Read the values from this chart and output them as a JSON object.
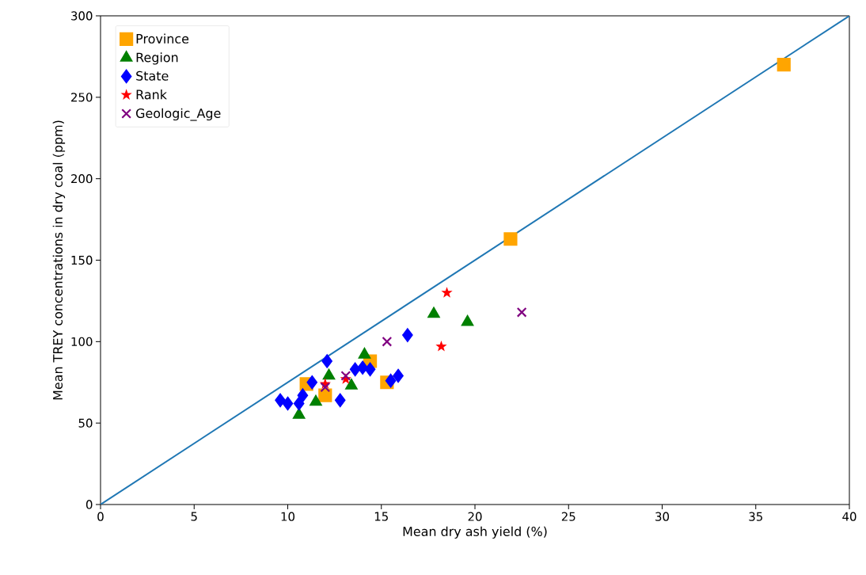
{
  "chart_data": {
    "type": "scatter",
    "xlabel": "Mean dry ash yield (%)",
    "ylabel": "Mean TREY concentrations in dry coal (ppm)",
    "xlim": [
      0,
      40
    ],
    "xticks": [
      0,
      5,
      10,
      15,
      20,
      25,
      30,
      35,
      40
    ],
    "ylim": [
      0,
      300
    ],
    "yticks": [
      0,
      50,
      100,
      150,
      200,
      250,
      300
    ],
    "grid": false,
    "legend": "top left",
    "series": [
      {
        "name": "Province",
        "color": "#ffa500",
        "marker": "square",
        "x": [
          11.0,
          12.0,
          14.4,
          15.3,
          21.9,
          36.5
        ],
        "values": [
          74,
          67,
          88,
          75,
          163,
          270
        ]
      },
      {
        "name": "Region",
        "color": "#008000",
        "marker": "triangle",
        "x": [
          10.6,
          11.5,
          12.2,
          13.4,
          14.1,
          17.8,
          19.6
        ],
        "values": [
          55,
          63,
          79,
          73,
          92,
          117,
          112
        ]
      },
      {
        "name": "State",
        "color": "#0000ff",
        "marker": "diamond",
        "x": [
          9.6,
          10.0,
          10.6,
          10.8,
          11.3,
          12.1,
          12.8,
          13.6,
          14.0,
          14.4,
          15.5,
          15.9,
          16.4
        ],
        "values": [
          64,
          62,
          62,
          67,
          75,
          88,
          64,
          83,
          84,
          83,
          76,
          79,
          104
        ]
      },
      {
        "name": "Rank",
        "color": "#ff0000",
        "marker": "star",
        "x": [
          12.0,
          13.1,
          18.2,
          18.5
        ],
        "values": [
          74,
          77,
          97,
          130
        ]
      },
      {
        "name": "Geologic_Age",
        "color": "#800080",
        "marker": "cross",
        "x": [
          12.0,
          13.1,
          15.3,
          22.5
        ],
        "values": [
          72,
          79,
          100,
          118
        ]
      },
      {
        "type": "line",
        "color": "#1f77b4",
        "marker": "none",
        "line_style": "solid",
        "x": [
          0,
          40
        ],
        "values": [
          0,
          300
        ]
      }
    ]
  }
}
